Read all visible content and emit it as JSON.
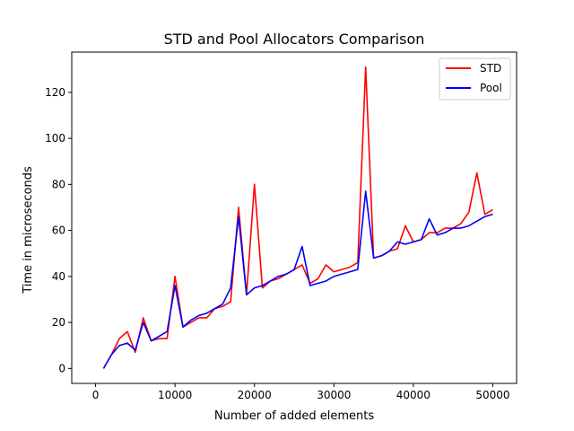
{
  "chart_data": {
    "type": "line",
    "title": "STD and Pool Allocators Comparison",
    "xlabel": "Number of added elements",
    "ylabel": "Time in microseconds",
    "xlim": [
      -3000,
      53000
    ],
    "ylim": [
      -6.5,
      137.5
    ],
    "xticks": [
      0,
      10000,
      20000,
      30000,
      40000,
      50000
    ],
    "yticks": [
      0,
      20,
      40,
      60,
      80,
      100,
      120
    ],
    "grid": false,
    "legend_position": "top-right",
    "x": [
      1000,
      2000,
      3000,
      4000,
      5000,
      6000,
      7000,
      8000,
      9000,
      10000,
      11000,
      12000,
      13000,
      14000,
      15000,
      16000,
      17000,
      18000,
      19000,
      20000,
      21000,
      22000,
      23000,
      24000,
      25000,
      26000,
      27000,
      28000,
      29000,
      30000,
      31000,
      32000,
      33000,
      34000,
      35000,
      36000,
      37000,
      38000,
      39000,
      40000,
      41000,
      42000,
      43000,
      44000,
      45000,
      46000,
      47000,
      48000,
      49000,
      50000
    ],
    "series": [
      {
        "name": "STD",
        "color": "#ff0000",
        "values": [
          0,
          6,
          13,
          16,
          7,
          22,
          12,
          13,
          13,
          40,
          18,
          20,
          22,
          22,
          26,
          27,
          29,
          70,
          32,
          80,
          35,
          38,
          39,
          41,
          43,
          45,
          37,
          39,
          45,
          42,
          43,
          44,
          46,
          131,
          48,
          49,
          51,
          52,
          62,
          55,
          56,
          59,
          59,
          61,
          61,
          63,
          68,
          85,
          67,
          69
        ]
      },
      {
        "name": "Pool",
        "color": "#0000ff",
        "values": [
          0,
          6,
          10,
          11,
          8,
          20,
          12,
          14,
          16,
          36,
          18,
          21,
          23,
          24,
          26,
          28,
          35,
          66,
          32,
          35,
          36,
          38,
          40,
          41,
          43,
          53,
          36,
          37,
          38,
          40,
          41,
          42,
          43,
          77,
          48,
          49,
          51,
          55,
          54,
          55,
          56,
          65,
          58,
          59,
          61,
          61,
          62,
          64,
          66,
          67
        ]
      }
    ]
  }
}
